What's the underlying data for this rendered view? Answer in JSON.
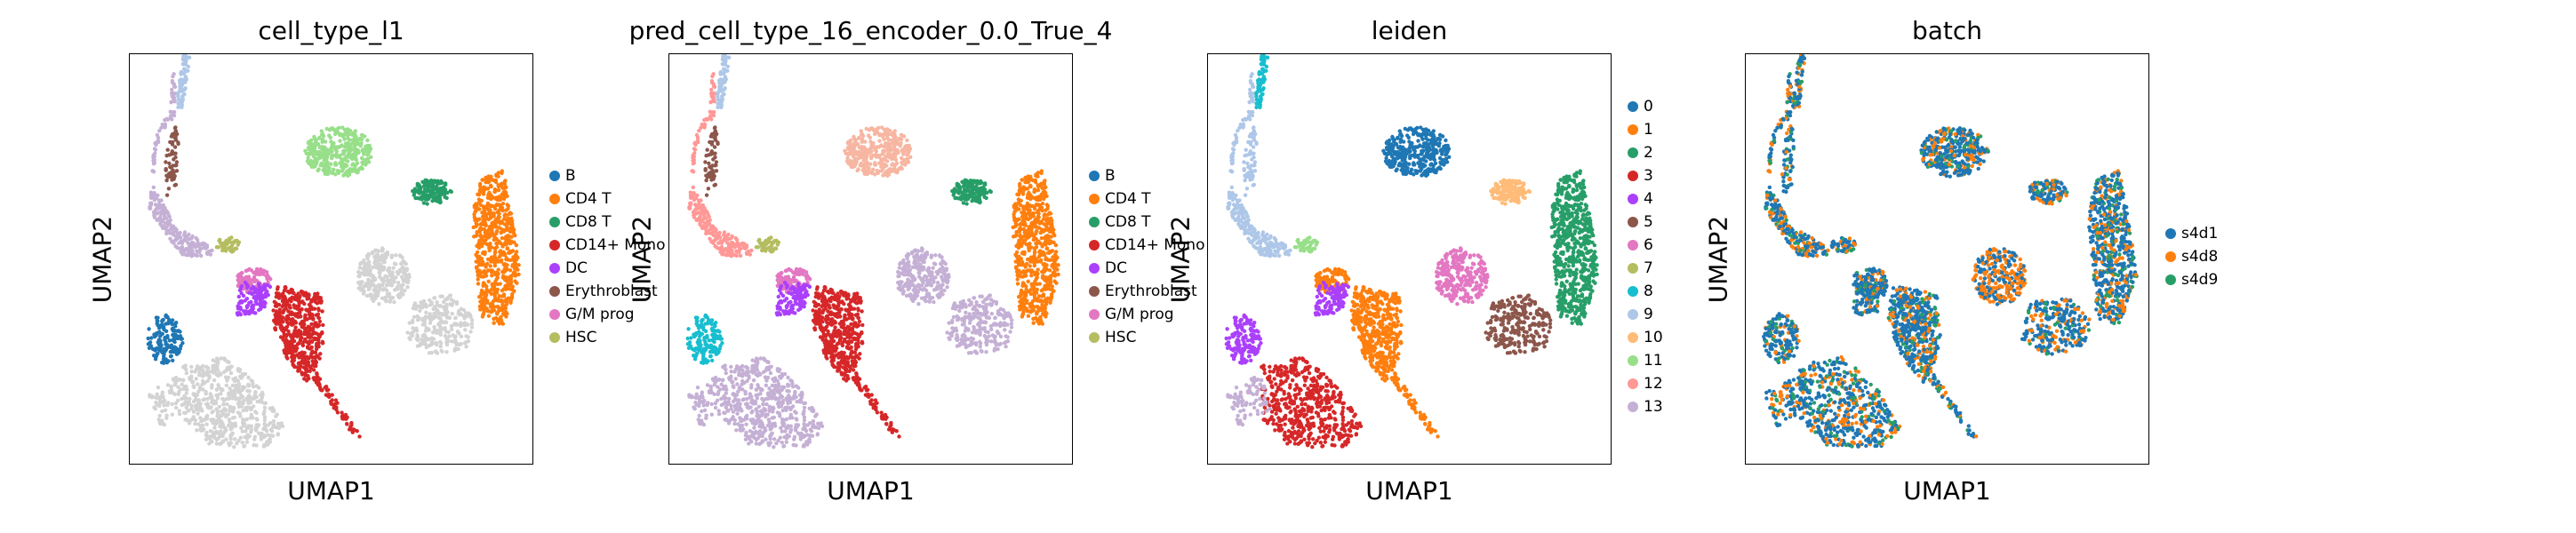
{
  "chart_data": [
    {
      "type": "scatter",
      "title": "cell_type_l1",
      "xlabel": "UMAP1",
      "ylabel": "UMAP2",
      "legend_placement": "right",
      "legend": [
        {
          "label": "B",
          "color": "#1f77b4"
        },
        {
          "label": "CD4 T",
          "color": "#ff7f0e"
        },
        {
          "label": "CD8 T",
          "color": "#279e68"
        },
        {
          "label": "CD14+ Mono",
          "color": "#d62728"
        },
        {
          "label": "DC",
          "color": "#aa40fc"
        },
        {
          "label": "Erythroblast",
          "color": "#8c564b"
        },
        {
          "label": "G/M prog",
          "color": "#e377c2"
        },
        {
          "label": "HSC",
          "color": "#b5bd61"
        }
      ],
      "unlabeled_color": "#d3d3d3",
      "cluster_colors": {
        "stalk": "#c5b0d5",
        "eryth": "#8c564b",
        "top_tip": "#aec7e8",
        "hsc": "#b5bd61",
        "top_blob": "#98df8a",
        "cd8_small": "#279e68",
        "cd4": "#ff7f0e",
        "right_lower": "#d3d3d3",
        "mid_grey": "#d3d3d3",
        "gm": "#e377c2",
        "dc": "#aa40fc",
        "mono": "#d62728",
        "b_left": "#1f77b4",
        "b_lower": "#d3d3d3",
        "tail": "#d62728"
      }
    },
    {
      "type": "scatter",
      "title": "pred_cell_type_16_encoder_0.0_True_4",
      "xlabel": "UMAP1",
      "ylabel": "UMAP2",
      "legend_placement": "right",
      "legend": [
        {
          "label": "B",
          "color": "#1f77b4"
        },
        {
          "label": "CD4 T",
          "color": "#ff7f0e"
        },
        {
          "label": "CD8 T",
          "color": "#279e68"
        },
        {
          "label": "CD14+ Mono",
          "color": "#d62728"
        },
        {
          "label": "DC",
          "color": "#aa40fc"
        },
        {
          "label": "Erythroblast",
          "color": "#8c564b"
        },
        {
          "label": "G/M prog",
          "color": "#e377c2"
        },
        {
          "label": "HSC",
          "color": "#b5bd61"
        }
      ],
      "cluster_colors": {
        "stalk": "#ff9896",
        "eryth": "#8c564b",
        "top_tip": "#aec7e8",
        "hsc": "#b5bd61",
        "top_blob": "#f7b6a2",
        "cd8_small": "#279e68",
        "cd4": "#ff7f0e",
        "right_lower": "#c5b0d5",
        "mid_grey": "#c5b0d5",
        "gm": "#e377c2",
        "dc": "#aa40fc",
        "mono": "#d62728",
        "b_left": "#17becf",
        "b_lower": "#c5b0d5",
        "tail": "#d62728"
      }
    },
    {
      "type": "scatter",
      "title": "leiden",
      "xlabel": "UMAP1",
      "ylabel": "UMAP2",
      "legend_placement": "right",
      "legend": [
        {
          "label": "0",
          "color": "#1f77b4"
        },
        {
          "label": "1",
          "color": "#ff7f0e"
        },
        {
          "label": "2",
          "color": "#279e68"
        },
        {
          "label": "3",
          "color": "#d62728"
        },
        {
          "label": "4",
          "color": "#aa40fc"
        },
        {
          "label": "5",
          "color": "#8c564b"
        },
        {
          "label": "6",
          "color": "#e377c2"
        },
        {
          "label": "7",
          "color": "#b5bd61"
        },
        {
          "label": "8",
          "color": "#17becf"
        },
        {
          "label": "9",
          "color": "#aec7e8"
        },
        {
          "label": "10",
          "color": "#ffbb78"
        },
        {
          "label": "11",
          "color": "#98df8a"
        },
        {
          "label": "12",
          "color": "#ff9896"
        },
        {
          "label": "13",
          "color": "#c5b0d5"
        }
      ],
      "cluster_colors": {
        "stalk": "#aec7e8",
        "eryth": "#aec7e8",
        "top_tip": "#17becf",
        "hsc": "#98df8a",
        "top_blob": "#1f77b4",
        "cd8_small": "#ffbb78",
        "cd4": "#279e68",
        "right_lower": "#8c564b",
        "mid_grey": "#e377c2",
        "gm": "#ff7f0e",
        "dc": "#aa40fc",
        "mono": "#ff7f0e",
        "b_left": "#aa40fc",
        "b_lower": "#d62728",
        "tail": "#ff7f0e",
        "extra": "#b5bd61"
      }
    },
    {
      "type": "scatter",
      "title": "batch",
      "xlabel": "UMAP1",
      "ylabel": "UMAP2",
      "legend_placement": "right",
      "legend": [
        {
          "label": "s4d1",
          "color": "#1f77b4"
        },
        {
          "label": "s4d8",
          "color": "#ff7f0e"
        },
        {
          "label": "s4d9",
          "color": "#279e68"
        }
      ],
      "mixed_batches": true
    }
  ]
}
